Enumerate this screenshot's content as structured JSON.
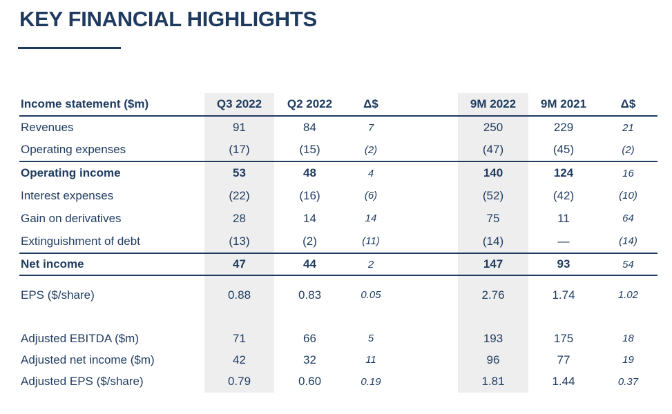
{
  "slide": {
    "title": "KEY FINANCIAL HIGHLIGHTS"
  },
  "colors": {
    "navy": "#1e3a5f",
    "highlight_gray": "#eeeeee",
    "background": "#ffffff"
  },
  "table": {
    "columns": [
      {
        "key": "label",
        "label": "Income statement ($m)",
        "align": "left"
      },
      {
        "key": "q3_2022",
        "label": "Q3 2022",
        "align": "center",
        "highlight": true
      },
      {
        "key": "q2_2022",
        "label": "Q2 2022",
        "align": "center"
      },
      {
        "key": "delta_quarter",
        "label": "Δ$",
        "align": "center",
        "delta": true
      },
      {
        "key": "gap",
        "label": "",
        "spacer": true
      },
      {
        "key": "nine_m_2022",
        "label": "9M 2022",
        "align": "center",
        "highlight": true
      },
      {
        "key": "nine_m_2021",
        "label": "9M 2021",
        "align": "center"
      },
      {
        "key": "delta_nine_m",
        "label": "Δ$",
        "align": "center",
        "delta": true
      }
    ],
    "rows": [
      {
        "name": "revenues",
        "cells": {
          "label": "Revenues",
          "q3_2022": "91",
          "q2_2022": "84",
          "delta_quarter": "7",
          "nine_m_2022": "250",
          "nine_m_2021": "229",
          "delta_nine_m": "21"
        }
      },
      {
        "name": "operating-expenses",
        "cells": {
          "label": "Operating expenses",
          "q3_2022": "(17)",
          "q2_2022": "(15)",
          "delta_quarter": "(2)",
          "nine_m_2022": "(47)",
          "nine_m_2021": "(45)",
          "delta_nine_m": "(2)"
        }
      },
      {
        "name": "operating-income",
        "bold": true,
        "rule_top": true,
        "cells": {
          "label": "Operating income",
          "q3_2022": "53",
          "q2_2022": "48",
          "delta_quarter": "4",
          "nine_m_2022": "140",
          "nine_m_2021": "124",
          "delta_nine_m": "16"
        }
      },
      {
        "name": "interest-expenses",
        "cells": {
          "label": "Interest expenses",
          "q3_2022": "(22)",
          "q2_2022": "(16)",
          "delta_quarter": "(6)",
          "nine_m_2022": "(52)",
          "nine_m_2021": "(42)",
          "delta_nine_m": "(10)"
        }
      },
      {
        "name": "gain-on-derivatives",
        "cells": {
          "label": "Gain on derivatives",
          "q3_2022": "28",
          "q2_2022": "14",
          "delta_quarter": "14",
          "nine_m_2022": "75",
          "nine_m_2021": "11",
          "delta_nine_m": "64"
        }
      },
      {
        "name": "extinguishment-of-debt",
        "cells": {
          "label": "Extinguishment of debt",
          "q3_2022": "(13)",
          "q2_2022": "(2)",
          "delta_quarter": "(11)",
          "nine_m_2022": "(14)",
          "nine_m_2021": "—",
          "delta_nine_m": "(14)"
        }
      },
      {
        "name": "net-income",
        "bold": true,
        "rule_top": true,
        "rule_bottom": true,
        "cells": {
          "label": "Net income",
          "q3_2022": "47",
          "q2_2022": "44",
          "delta_quarter": "2",
          "nine_m_2022": "147",
          "nine_m_2021": "93",
          "delta_nine_m": "54"
        }
      },
      {
        "name": "eps",
        "cells": {
          "label": "EPS ($/share)",
          "q3_2022": "0.88",
          "q2_2022": "0.83",
          "delta_quarter": "0.05",
          "nine_m_2022": "2.76",
          "nine_m_2021": "1.74",
          "delta_nine_m": "1.02"
        }
      },
      {
        "name": "gap",
        "spacer": true,
        "cells": {}
      },
      {
        "name": "adjusted-ebitda",
        "cells": {
          "label": "Adjusted EBITDA ($m)",
          "q3_2022": "71",
          "q2_2022": "66",
          "delta_quarter": "5",
          "nine_m_2022": "193",
          "nine_m_2021": "175",
          "delta_nine_m": "18"
        }
      },
      {
        "name": "adjusted-net-income",
        "cells": {
          "label": "Adjusted net income ($m)",
          "q3_2022": "42",
          "q2_2022": "32",
          "delta_quarter": "11",
          "nine_m_2022": "96",
          "nine_m_2021": "77",
          "delta_nine_m": "19"
        }
      },
      {
        "name": "adjusted-eps",
        "cells": {
          "label": "Adjusted EPS ($/share)",
          "q3_2022": "0.79",
          "q2_2022": "0.60",
          "delta_quarter": "0.19",
          "nine_m_2022": "1.81",
          "nine_m_2021": "1.44",
          "delta_nine_m": "0.37"
        }
      }
    ]
  }
}
